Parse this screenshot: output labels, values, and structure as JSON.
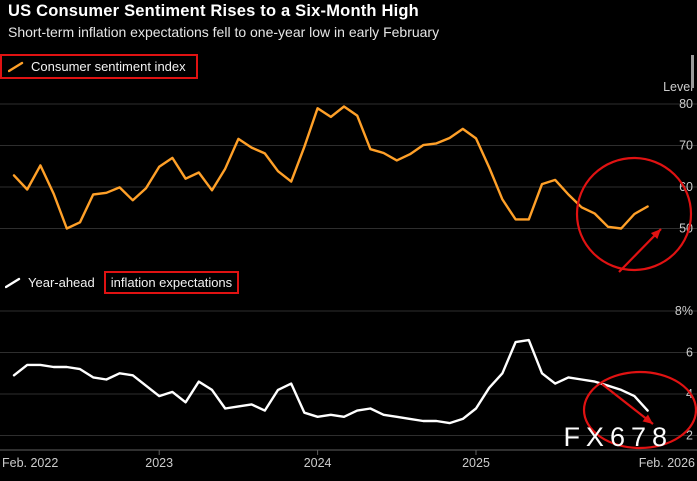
{
  "header": {
    "title": "US Consumer Sentiment Rises to a Six-Month High",
    "subtitle": "Short-term inflation expectations fell to one-year low in early February"
  },
  "watermark": "FX678",
  "colors": {
    "background": "#000000",
    "sentiment_line": "#ffa028",
    "inflation_line": "#ffffff",
    "annotation_red": "#e01212",
    "gridline": "#2e2e2e",
    "axis_text": "#cccccc",
    "axis_line": "#5f5f5f"
  },
  "x_axis": {
    "labels": [
      "Feb. 2022",
      "2023",
      "2024",
      "2025",
      "Feb. 2026"
    ]
  },
  "chart_data": [
    {
      "type": "line",
      "panel": "top",
      "legend": "Consumer sentiment index",
      "ylabel": "Level",
      "yticks": [
        80,
        70,
        60,
        50
      ],
      "ylim": [
        45,
        83
      ],
      "x_start": "Feb. 2022",
      "x_end": "Feb. 2026",
      "frequency": "monthly",
      "line_color": "#ffa028",
      "values": [
        62.8,
        59.4,
        65.2,
        58.4,
        50.0,
        51.5,
        58.2,
        58.6,
        59.9,
        56.8,
        59.7,
        64.9,
        67.0,
        62.0,
        63.5,
        59.2,
        64.4,
        71.6,
        69.5,
        68.1,
        63.8,
        61.3,
        69.7,
        79.0,
        76.9,
        79.4,
        77.2,
        69.1,
        68.2,
        66.4,
        67.9,
        70.1,
        70.5,
        71.8,
        74.0,
        71.7,
        64.7,
        57.0,
        52.2,
        52.2,
        60.7,
        61.7,
        58.2,
        55.1,
        53.6,
        50.4,
        50.0,
        53.5,
        55.3
      ]
    },
    {
      "type": "line",
      "panel": "bottom",
      "legend": "Year-ahead inflation expectations",
      "legend_prefix": "Year-ahead",
      "legend_boxed": "inflation expectations",
      "ytick_labels": [
        "8%",
        "6",
        "4",
        "2"
      ],
      "yticks": [
        8,
        6,
        4,
        2
      ],
      "ylim": [
        1.3,
        8.5
      ],
      "x_start": "Feb. 2022",
      "x_end": "Feb. 2026",
      "frequency": "monthly",
      "line_color": "#ffffff",
      "values": [
        4.9,
        5.4,
        5.4,
        5.3,
        5.3,
        5.2,
        4.8,
        4.7,
        5.0,
        4.9,
        4.4,
        3.9,
        4.1,
        3.6,
        4.6,
        4.2,
        3.3,
        3.4,
        3.5,
        3.2,
        4.2,
        4.5,
        3.1,
        2.9,
        3.0,
        2.9,
        3.2,
        3.3,
        3.0,
        2.9,
        2.8,
        2.7,
        2.7,
        2.6,
        2.8,
        3.3,
        4.3,
        5.0,
        6.5,
        6.6,
        5.0,
        4.5,
        4.8,
        4.7,
        4.6,
        4.4,
        4.2,
        3.9,
        3.2
      ]
    }
  ]
}
